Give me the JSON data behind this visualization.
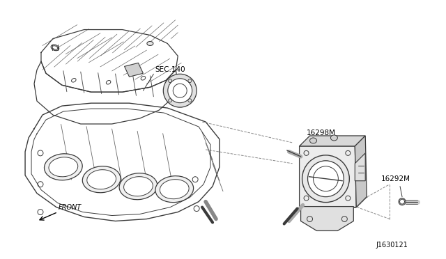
{
  "background_color": "#ffffff",
  "line_color": "#3a3a3a",
  "dashed_color": "#888888",
  "diagram_id": "J1630121",
  "labels": {
    "sec140": "SEC.140",
    "part1": "16298M",
    "part2": "16292M",
    "front": "FRONT"
  },
  "figsize": [
    6.4,
    3.72
  ],
  "dpi": 100
}
